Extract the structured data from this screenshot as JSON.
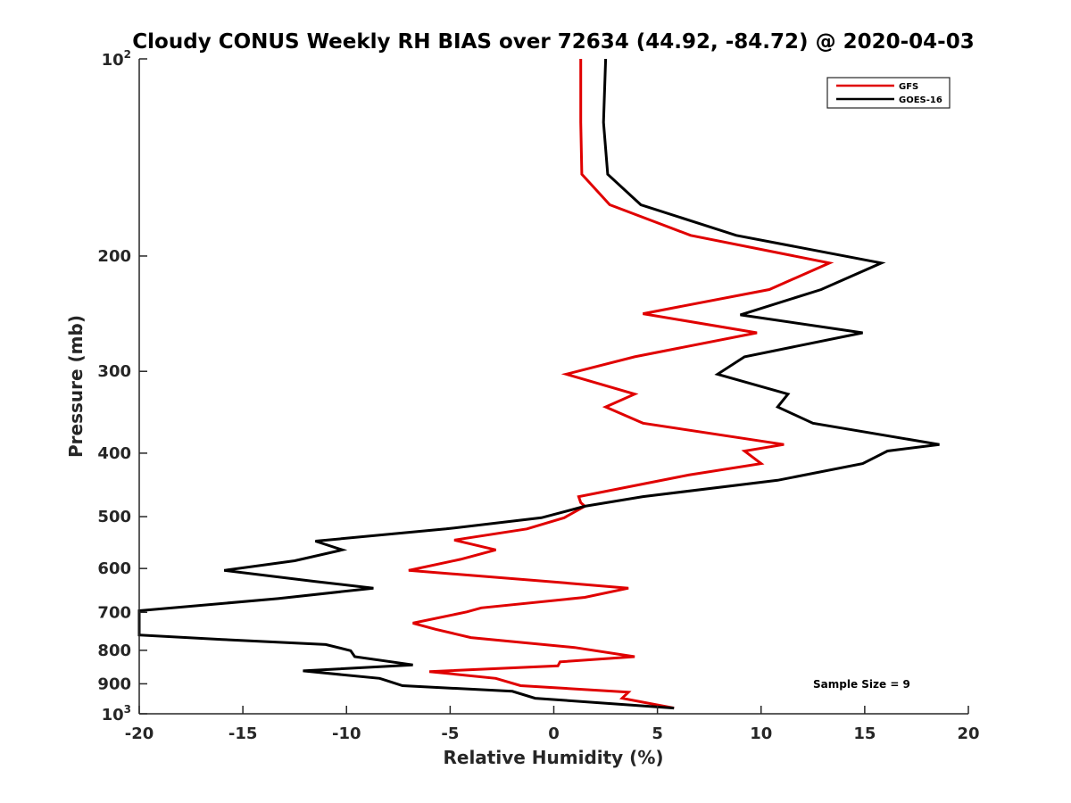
{
  "chart_data": {
    "type": "line",
    "title": "Cloudy CONUS Weekly RH BIAS over 72634 (44.92, -84.72) @ 2020-04-03",
    "xlabel": "Relative Humidity (%)",
    "ylabel": "Pressure (mb)",
    "xlim": [
      -20,
      20
    ],
    "ylim": [
      100,
      1000
    ],
    "y_scale": "log",
    "y_reversed": true,
    "grid": false,
    "legend_position": "top-right",
    "x_ticks": [
      -20,
      -15,
      -10,
      -5,
      0,
      5,
      10,
      15,
      20
    ],
    "x_tick_labels": [
      "-20",
      "-15",
      "-10",
      "-5",
      "0",
      "5",
      "10",
      "15",
      "20"
    ],
    "y_ticks": [
      200,
      300,
      400,
      500,
      600,
      700,
      800,
      900
    ],
    "y_tick_labels": [
      "200",
      "300",
      "400",
      "500",
      "600",
      "700",
      "800",
      "900"
    ],
    "y_end_labels": [
      {
        "value": 100,
        "base": "10",
        "exp": "2"
      },
      {
        "value": 1000,
        "base": "10",
        "exp": "3"
      }
    ],
    "annotation": "Sample Size = 9",
    "series": [
      {
        "name": "GFS",
        "color": "#e00000",
        "points": [
          [
            1.3,
            100
          ],
          [
            1.3,
            125
          ],
          [
            1.35,
            150
          ],
          [
            2.7,
            167
          ],
          [
            6.6,
            186
          ],
          [
            13.3,
            205
          ],
          [
            10.4,
            225
          ],
          [
            4.3,
            245
          ],
          [
            9.8,
            262
          ],
          [
            3.9,
            285
          ],
          [
            0.6,
            303
          ],
          [
            3.9,
            325
          ],
          [
            2.5,
            340
          ],
          [
            4.3,
            360
          ],
          [
            11.1,
            388
          ],
          [
            9.2,
            397
          ],
          [
            10.0,
            415
          ],
          [
            6.5,
            432
          ],
          [
            1.2,
            466
          ],
          [
            1.3,
            476
          ],
          [
            1.5,
            482
          ],
          [
            0.5,
            502
          ],
          [
            -1.3,
            522
          ],
          [
            -4.8,
            543
          ],
          [
            -2.8,
            562
          ],
          [
            -4.5,
            581
          ],
          [
            -7.0,
            604
          ],
          [
            -0.8,
            626
          ],
          [
            3.6,
            643
          ],
          [
            1.5,
            664
          ],
          [
            -3.5,
            689
          ],
          [
            -4.2,
            699
          ],
          [
            -6.8,
            727
          ],
          [
            -5.7,
            743
          ],
          [
            -4.0,
            765
          ],
          [
            1.0,
            792
          ],
          [
            3.9,
            818
          ],
          [
            0.3,
            833
          ],
          [
            0.2,
            845
          ],
          [
            -6.0,
            862
          ],
          [
            -2.8,
            883
          ],
          [
            -1.6,
            906
          ],
          [
            3.6,
            927
          ],
          [
            3.3,
            947
          ],
          [
            5.8,
            980
          ]
        ]
      },
      {
        "name": "GOES-16",
        "color": "#000000",
        "points": [
          [
            2.5,
            100
          ],
          [
            2.4,
            125
          ],
          [
            2.6,
            150
          ],
          [
            4.2,
            167
          ],
          [
            8.8,
            186
          ],
          [
            15.8,
            205
          ],
          [
            12.9,
            225
          ],
          [
            9.0,
            246
          ],
          [
            14.9,
            262
          ],
          [
            9.2,
            285
          ],
          [
            7.9,
            303
          ],
          [
            11.3,
            325
          ],
          [
            10.8,
            340
          ],
          [
            12.5,
            360
          ],
          [
            18.6,
            388
          ],
          [
            16.1,
            397
          ],
          [
            14.9,
            415
          ],
          [
            10.8,
            440
          ],
          [
            4.3,
            466
          ],
          [
            1.5,
            482
          ],
          [
            -0.6,
            502
          ],
          [
            -5.2,
            522
          ],
          [
            -11.5,
            545
          ],
          [
            -10.2,
            562
          ],
          [
            -12.5,
            584
          ],
          [
            -15.9,
            604
          ],
          [
            -11.5,
            628
          ],
          [
            -8.7,
            643
          ],
          [
            -13.3,
            667
          ],
          [
            -20.0,
            696
          ],
          [
            -20.0,
            758
          ],
          [
            -16.0,
            770
          ],
          [
            -11.0,
            784
          ],
          [
            -9.8,
            801
          ],
          [
            -9.6,
            818
          ],
          [
            -6.8,
            842
          ],
          [
            -12.1,
            860
          ],
          [
            -8.4,
            883
          ],
          [
            -7.3,
            906
          ],
          [
            -2.0,
            924
          ],
          [
            -0.9,
            947
          ],
          [
            5.8,
            980
          ]
        ]
      }
    ]
  }
}
